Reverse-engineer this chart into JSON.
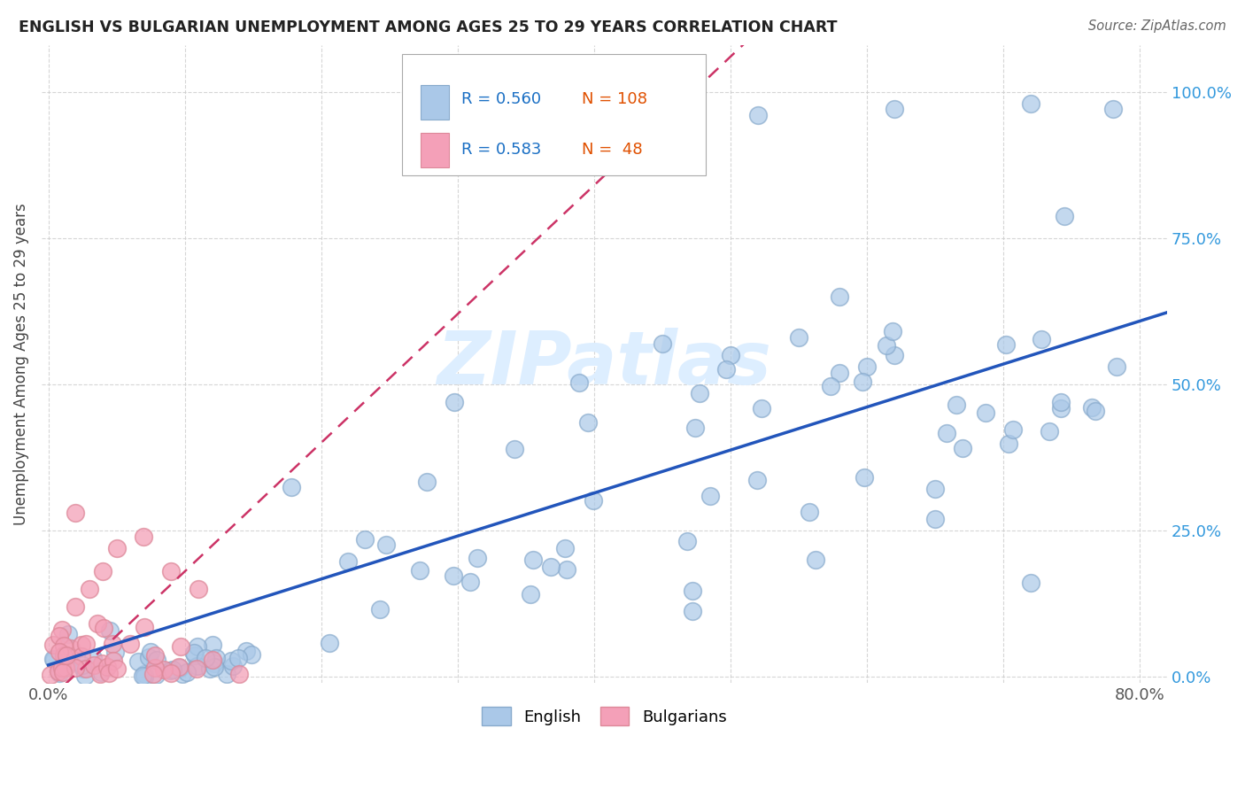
{
  "title": "ENGLISH VS BULGARIAN UNEMPLOYMENT AMONG AGES 25 TO 29 YEARS CORRELATION CHART",
  "source": "Source: ZipAtlas.com",
  "ylabel": "Unemployment Among Ages 25 to 29 years",
  "xlim": [
    -0.005,
    0.82
  ],
  "ylim": [
    -0.01,
    1.08
  ],
  "xtick_positions": [
    0.0,
    0.1,
    0.2,
    0.3,
    0.4,
    0.5,
    0.6,
    0.7,
    0.8
  ],
  "xticklabels": [
    "0.0%",
    "",
    "",
    "",
    "",
    "",
    "",
    "",
    "80.0%"
  ],
  "ytick_positions": [
    0.0,
    0.25,
    0.5,
    0.75,
    1.0
  ],
  "yticklabels": [
    "0.0%",
    "25.0%",
    "50.0%",
    "75.0%",
    "100.0%"
  ],
  "english_color": "#aac8e8",
  "english_edge_color": "#88aacc",
  "bulgarian_color": "#f4a0b8",
  "bulgarian_edge_color": "#dd8899",
  "english_R": 0.56,
  "english_N": 108,
  "bulgarian_R": 0.583,
  "bulgarian_N": 48,
  "legend_R_color": "#1a6fc4",
  "legend_N_color": "#e05000",
  "english_line_color": "#2255bb",
  "bulgarian_line_color": "#cc3366",
  "watermark_color": "#ddeeff",
  "title_color": "#222222",
  "source_color": "#666666",
  "ylabel_color": "#444444",
  "tick_color": "#555555",
  "grid_color": "#cccccc"
}
